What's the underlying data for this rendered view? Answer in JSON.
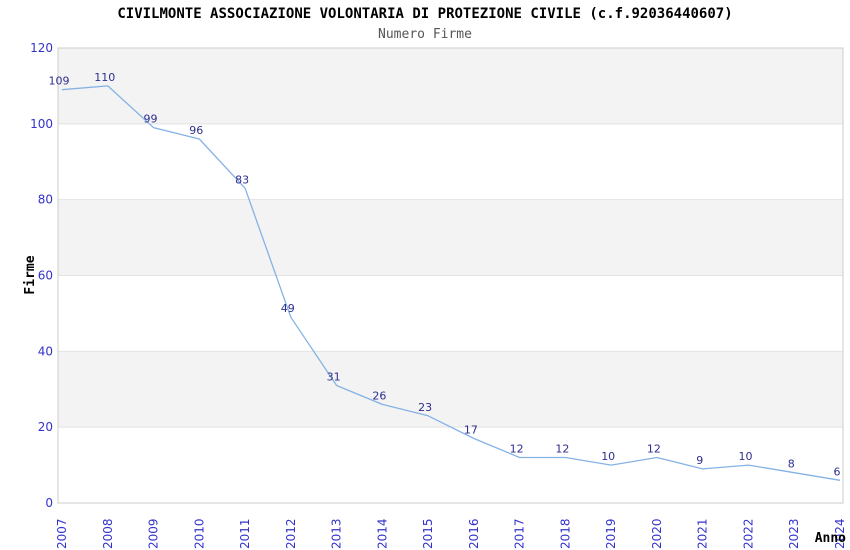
{
  "header": {
    "title": "CIVILMONTE ASSOCIAZIONE VOLONTARIA DI PROTEZIONE CIVILE (c.f.92036440607)",
    "subtitle": "Numero Firme"
  },
  "chart_data": {
    "type": "line",
    "title": "CIVILMONTE ASSOCIAZIONE VOLONTARIA DI PROTEZIONE CIVILE (c.f.92036440607)",
    "subtitle": "Numero Firme",
    "xlabel": "Anno",
    "ylabel": "Firme",
    "categories": [
      "2007",
      "2008",
      "2009",
      "2010",
      "2011",
      "2012",
      "2013",
      "2014",
      "2015",
      "2016",
      "2017",
      "2018",
      "2019",
      "2020",
      "2021",
      "2022",
      "2023",
      "2024"
    ],
    "values": [
      109,
      110,
      99,
      96,
      83,
      49,
      31,
      26,
      23,
      17,
      12,
      12,
      10,
      12,
      9,
      10,
      8,
      6
    ],
    "ylim": [
      0,
      120
    ],
    "yticks": [
      0,
      20,
      40,
      60,
      80,
      100,
      120
    ],
    "grid": "horizontal-alternating-bands",
    "legend": "none",
    "data_labels": "on",
    "x_tick_rotation": -90,
    "colors": {
      "line": "#85b2e5",
      "data_label": "#2e2e8f",
      "tick_label": "#3333cc",
      "band_gray": "#f3f3f3",
      "band_white": "#ffffff",
      "grid_line": "#e3e3e3",
      "plot_border": "#cccccc",
      "title": "#000000",
      "subtitle": "#555555",
      "axis_title": "#000000",
      "background": "#ffffff"
    }
  }
}
